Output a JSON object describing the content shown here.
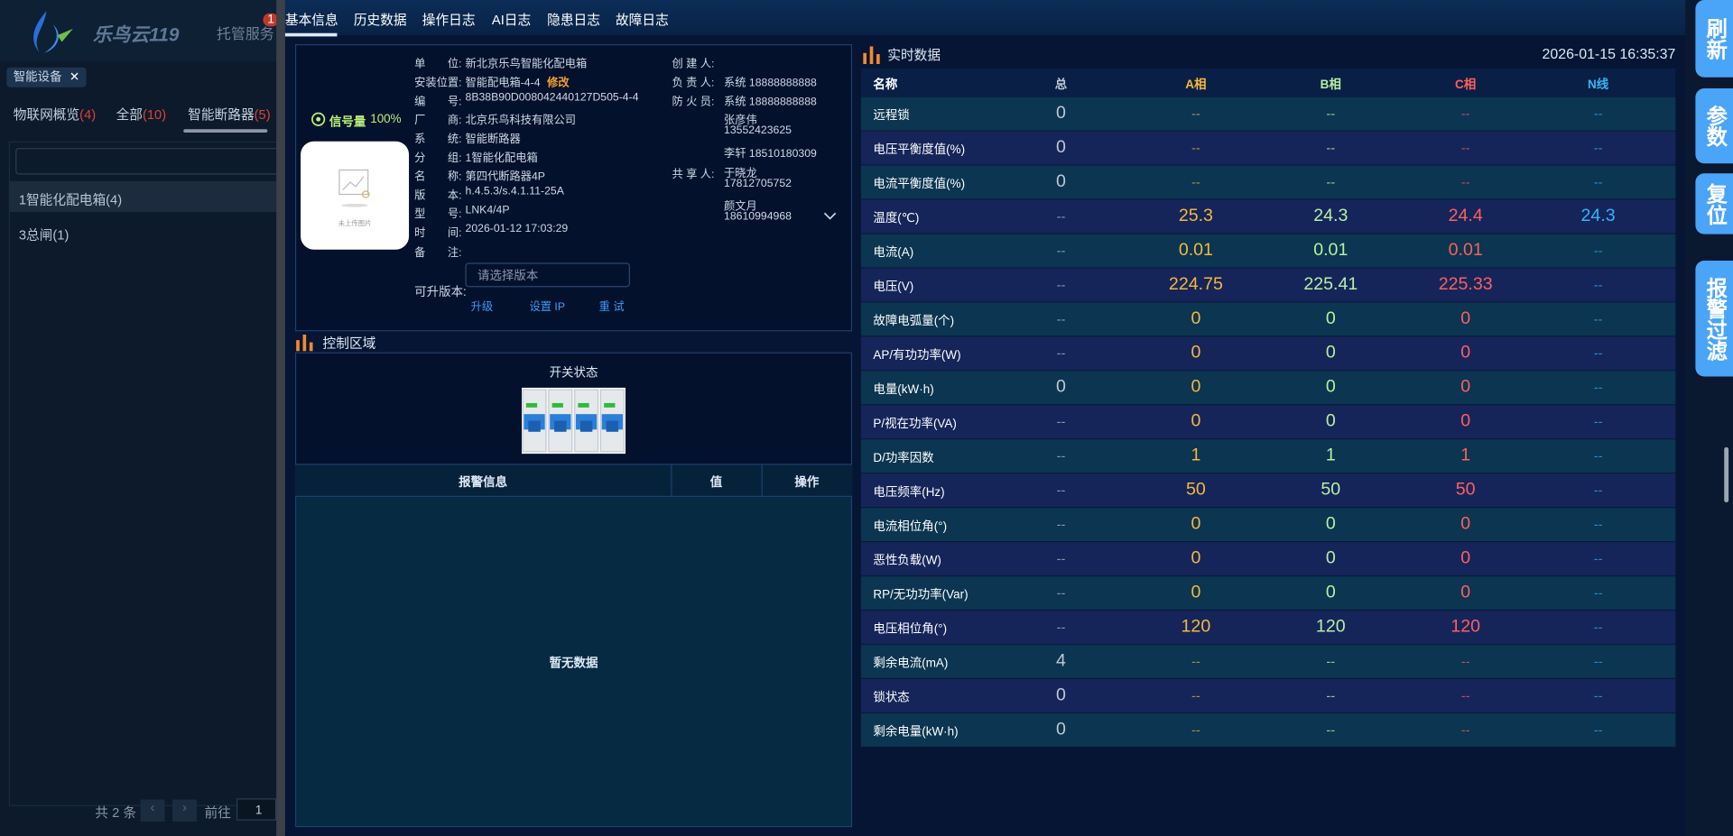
{
  "sidebar": {
    "logo": "乐鸟云119",
    "nav": "托管服务",
    "badge": "1",
    "tag": "智能设备",
    "tabs": [
      {
        "label": "物联网概览",
        "count": "(4)"
      },
      {
        "label": "全部",
        "count": "(10)"
      },
      {
        "label": "智能断路器",
        "count": "(5)"
      }
    ],
    "tree": [
      "1智能化配电箱(4)",
      "3总闸(1)"
    ],
    "pager": {
      "total": "共 2 条",
      "goto": "前往",
      "page": "1"
    }
  },
  "tabs": [
    "基本信息",
    "历史数据",
    "操作日志",
    "AI日志",
    "隐患日志",
    "故障日志"
  ],
  "device": {
    "signal_label": "信号量",
    "signal_value": "100%",
    "image_caption": "未上传图片",
    "fields": [
      {
        "label": "单　　位:",
        "value": "新北京乐鸟智能化配电箱"
      },
      {
        "label": "安装位置:",
        "value": "智能配电箱-4-4",
        "link": "修改"
      },
      {
        "label": "编　　号:",
        "value": "8B38B90D008042440127D505-4-4"
      },
      {
        "label": "厂　　商:",
        "value": "北京乐鸟科技有限公司"
      },
      {
        "label": "系　　统:",
        "value": "智能断路器"
      },
      {
        "label": "分　　组:",
        "value": "1智能化配电箱"
      },
      {
        "label": "名　　称:",
        "value": "第四代断路器4P"
      },
      {
        "label": "版　　本:",
        "value": "h.4.5.3/s.4.1.11-25A"
      },
      {
        "label": "型　　号:",
        "value": "LNK4/4P"
      },
      {
        "label": "时　　间:",
        "value": "2026-01-12 17:03:29"
      },
      {
        "label": "备　　注:"
      }
    ],
    "people": [
      {
        "label": "创 建 人:"
      },
      {
        "label": "负 责 人:",
        "value": "系统 18888888888"
      },
      {
        "label": "防 火 员:",
        "value": "系统 18888888888"
      }
    ],
    "share_label": "共 享 人:",
    "share_lines": [
      "张彦伟",
      "13552423625",
      "李轩 18510180309",
      "于晓龙",
      "17812705752",
      "颜文月",
      "18610994968"
    ],
    "upgrade_label": "可升版本:",
    "upgrade_placeholder": "请选择版本",
    "actions": [
      "升级",
      "设置 IP",
      "重 试"
    ]
  },
  "control": {
    "title": "控制区域",
    "switch_label": "开关状态",
    "alarm_headers": [
      "报警信息",
      "值",
      "操作"
    ],
    "empty": "暂无数据"
  },
  "realtime": {
    "title": "实时数据",
    "time": "2026-01-15 16:35:37",
    "headers": [
      "名称",
      "总",
      "A相",
      "B相",
      "C相",
      "N线"
    ],
    "rows": [
      [
        "远程锁",
        0,
        "--",
        "--",
        "--",
        "--"
      ],
      [
        "电压平衡度值(%)",
        0,
        "--",
        "--",
        "--",
        "--"
      ],
      [
        "电流平衡度值(%)",
        0,
        "--",
        "--",
        "--",
        "--"
      ],
      [
        "温度(℃)",
        "--",
        25.3,
        24.3,
        24.4,
        24.3
      ],
      [
        "电流(A)",
        "--",
        0.01,
        0.01,
        0.01,
        "--"
      ],
      [
        "电压(V)",
        "--",
        224.75,
        225.41,
        225.33,
        "--"
      ],
      [
        "故障电弧量(个)",
        "--",
        0,
        0,
        0,
        "--"
      ],
      [
        "AP/有功功率(W)",
        "--",
        0,
        0,
        0,
        "--"
      ],
      [
        "电量(kW·h)",
        0,
        0,
        0,
        0,
        "--"
      ],
      [
        "P/视在功率(VA)",
        "--",
        0,
        0,
        0,
        "--"
      ],
      [
        "D/功率因数",
        "--",
        1,
        1,
        1,
        "--"
      ],
      [
        "电压频率(Hz)",
        "--",
        50,
        50,
        50,
        "--"
      ],
      [
        "电流相位角(°)",
        "--",
        0,
        0,
        0,
        "--"
      ],
      [
        "恶性负载(W)",
        "--",
        0,
        0,
        0,
        "--"
      ],
      [
        "RP/无功功率(Var)",
        "--",
        0,
        0,
        0,
        "--"
      ],
      [
        "电压相位角(°)",
        "--",
        120,
        120,
        120,
        "--"
      ],
      [
        "剩余电流(mA)",
        4,
        "--",
        "--",
        "--",
        "--"
      ],
      [
        "锁状态",
        0,
        "--",
        "--",
        "--",
        "--"
      ],
      [
        "剩余电量(kW·h)",
        0,
        "--",
        "--",
        "--",
        "--"
      ]
    ]
  },
  "side_buttons": [
    "刷新",
    "参数",
    "复位",
    "报警过滤"
  ]
}
